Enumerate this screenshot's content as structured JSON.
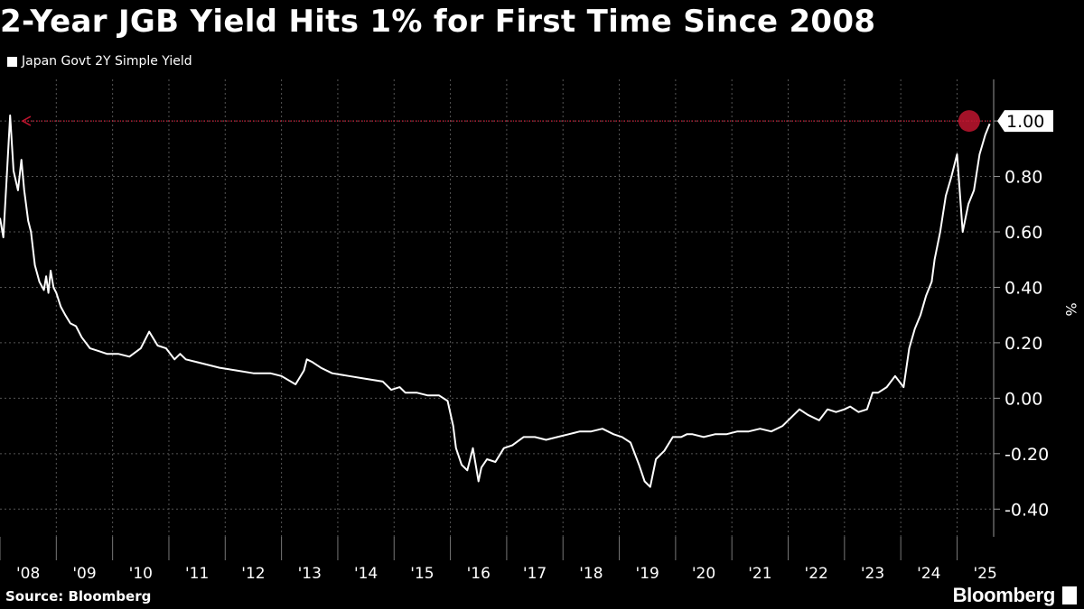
{
  "title": "2-Year JGB Yield Hits 1% for First Time Since 2008",
  "source": "Source: Bloomberg",
  "brand": "Bloomberg",
  "colors": {
    "background": "#000000",
    "line": "#ffffff",
    "highlight": "#c0152f",
    "grid": "#555555"
  },
  "chart_data": {
    "type": "line",
    "legend": [
      "Japan Govt 2Y Simple Yield"
    ],
    "ylabel": "%",
    "ylim": [
      -0.5,
      1.15
    ],
    "yticks": [
      1.0,
      0.8,
      0.6,
      0.4,
      0.2,
      0.0,
      -0.2,
      -0.4
    ],
    "ytick_labels": [
      "1.00",
      "0.80",
      "0.60",
      "0.40",
      "0.20",
      "0.00",
      "-0.20",
      "-0.40"
    ],
    "xlim": [
      2008.0,
      2025.65
    ],
    "xtick_labels": [
      "'08",
      "'09",
      "'10",
      "'11",
      "'12",
      "'13",
      "'14",
      "'15",
      "'16",
      "'17",
      "'18",
      "'19",
      "'20",
      "'21",
      "'22",
      "'23",
      "'24",
      "'25"
    ],
    "grid": true,
    "annotation": {
      "label": "1.00",
      "value": 1.0,
      "from_x": 2008.4,
      "to_x": 2025.6
    },
    "series": [
      {
        "x": [
          2008.0,
          2008.06,
          2008.12,
          2008.18,
          2008.24,
          2008.32,
          2008.38,
          2008.43,
          2008.5,
          2008.55,
          2008.62,
          2008.7,
          2008.78,
          2008.82,
          2008.86,
          2008.9,
          2008.95,
          2009.0,
          2009.08,
          2009.16,
          2009.25,
          2009.35,
          2009.45,
          2009.6,
          2009.75,
          2009.9,
          2010.1,
          2010.3,
          2010.5,
          2010.65,
          2010.8,
          2010.95,
          2011.1,
          2011.2,
          2011.3,
          2011.5,
          2011.7,
          2011.9,
          2012.2,
          2012.5,
          2012.8,
          2013.0,
          2013.25,
          2013.4,
          2013.45,
          2013.55,
          2013.7,
          2013.9,
          2014.2,
          2014.5,
          2014.8,
          2014.95,
          2015.1,
          2015.2,
          2015.4,
          2015.6,
          2015.8,
          2015.95,
          2016.05,
          2016.1,
          2016.2,
          2016.3,
          2016.4,
          2016.5,
          2016.55,
          2016.65,
          2016.8,
          2016.95,
          2017.1,
          2017.3,
          2017.5,
          2017.7,
          2017.9,
          2018.1,
          2018.3,
          2018.5,
          2018.7,
          2018.9,
          2019.05,
          2019.2,
          2019.35,
          2019.45,
          2019.55,
          2019.65,
          2019.8,
          2019.95,
          2020.1,
          2020.2,
          2020.3,
          2020.5,
          2020.7,
          2020.9,
          2021.1,
          2021.3,
          2021.5,
          2021.7,
          2021.9,
          2022.05,
          2022.2,
          2022.35,
          2022.45,
          2022.55,
          2022.7,
          2022.85,
          2023.0,
          2023.1,
          2023.25,
          2023.4,
          2023.5,
          2023.6,
          2023.75,
          2023.9,
          2024.05,
          2024.15,
          2024.25,
          2024.35,
          2024.45,
          2024.55,
          2024.6,
          2024.7,
          2024.8,
          2024.9,
          2025.0,
          2025.1,
          2025.2,
          2025.3,
          2025.4,
          2025.5,
          2025.58
        ],
        "values": [
          0.65,
          0.58,
          0.8,
          1.02,
          0.82,
          0.75,
          0.86,
          0.75,
          0.64,
          0.6,
          0.48,
          0.42,
          0.39,
          0.44,
          0.38,
          0.46,
          0.4,
          0.38,
          0.33,
          0.3,
          0.27,
          0.26,
          0.22,
          0.18,
          0.17,
          0.16,
          0.16,
          0.15,
          0.18,
          0.24,
          0.19,
          0.18,
          0.14,
          0.16,
          0.14,
          0.13,
          0.12,
          0.11,
          0.1,
          0.09,
          0.09,
          0.08,
          0.05,
          0.1,
          0.14,
          0.13,
          0.11,
          0.09,
          0.08,
          0.07,
          0.06,
          0.03,
          0.04,
          0.02,
          0.02,
          0.01,
          0.01,
          -0.01,
          -0.1,
          -0.18,
          -0.24,
          -0.26,
          -0.18,
          -0.3,
          -0.25,
          -0.22,
          -0.23,
          -0.18,
          -0.17,
          -0.14,
          -0.14,
          -0.15,
          -0.14,
          -0.13,
          -0.12,
          -0.12,
          -0.11,
          -0.13,
          -0.14,
          -0.16,
          -0.24,
          -0.3,
          -0.32,
          -0.22,
          -0.19,
          -0.14,
          -0.14,
          -0.13,
          -0.13,
          -0.14,
          -0.13,
          -0.13,
          -0.12,
          -0.12,
          -0.11,
          -0.12,
          -0.1,
          -0.07,
          -0.04,
          -0.06,
          -0.07,
          -0.08,
          -0.04,
          -0.05,
          -0.04,
          -0.03,
          -0.05,
          -0.04,
          0.02,
          0.02,
          0.04,
          0.08,
          0.04,
          0.18,
          0.25,
          0.3,
          0.37,
          0.42,
          0.5,
          0.6,
          0.73,
          0.8,
          0.88,
          0.6,
          0.7,
          0.75,
          0.88,
          0.95,
          0.99
        ]
      }
    ]
  }
}
